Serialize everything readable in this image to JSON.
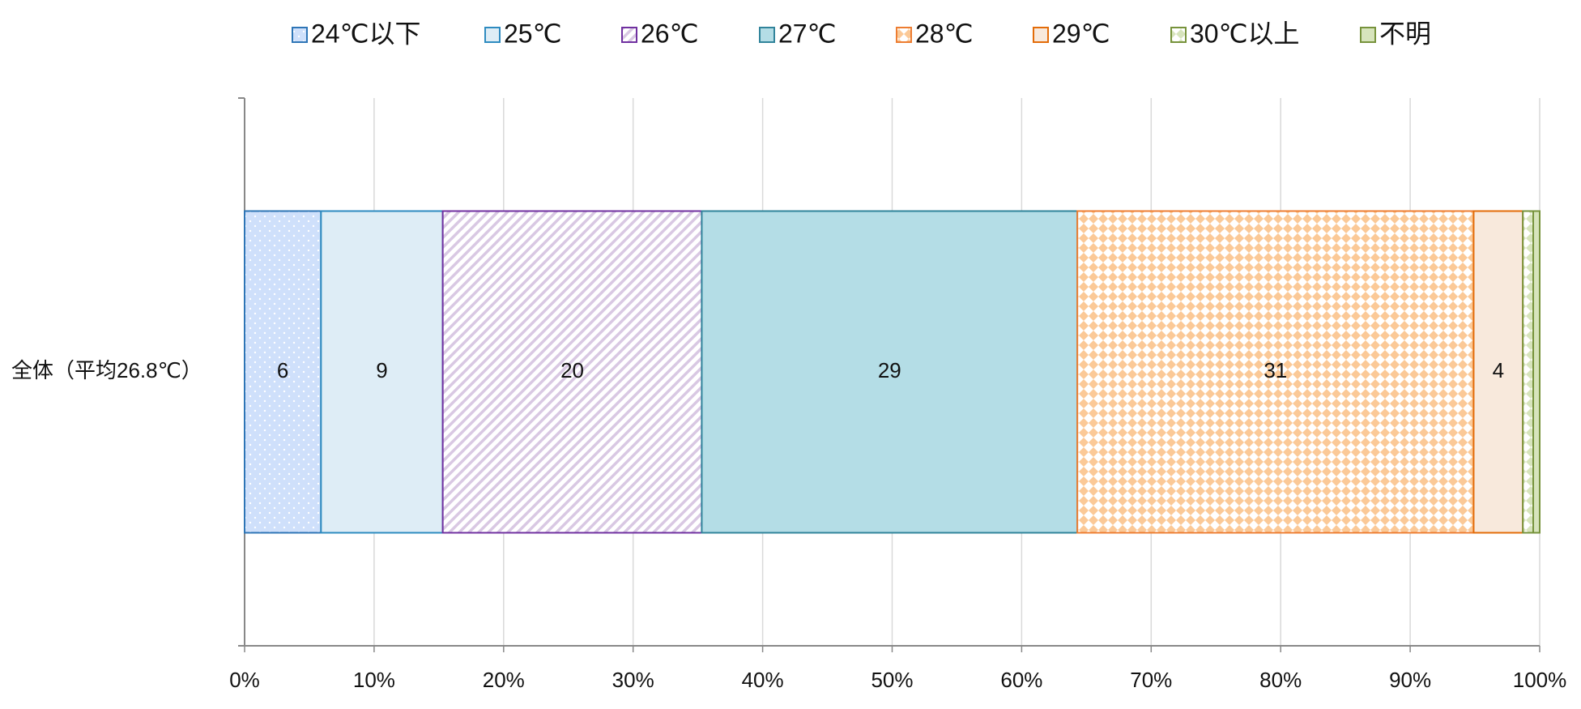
{
  "chart_data": {
    "type": "stacked_barh",
    "categories": [
      "全体（平均26.8℃）"
    ],
    "series": [
      {
        "name": "24℃以下",
        "color": "#cfe0fb",
        "edge": "#2e75b6",
        "pattern": "dots",
        "values": [
          5.9
        ],
        "value_labels": [
          "6"
        ]
      },
      {
        "name": "25℃",
        "color": "#deedf6",
        "edge": "#2e8bc0",
        "pattern": "none",
        "values": [
          9.4
        ],
        "value_labels": [
          "9"
        ]
      },
      {
        "name": "26℃",
        "color": "#d9c8e3",
        "edge": "#7030a0",
        "pattern": "stripes",
        "values": [
          20.0
        ],
        "value_labels": [
          "20"
        ]
      },
      {
        "name": "27℃",
        "color": "#b4dde6",
        "edge": "#31849b",
        "pattern": "none",
        "values": [
          29.0
        ],
        "value_labels": [
          "29"
        ]
      },
      {
        "name": "28℃",
        "color": "#fbc997",
        "edge": "#ed7d31",
        "pattern": "checker",
        "values": [
          30.6
        ],
        "value_labels": [
          "31"
        ]
      },
      {
        "name": "29℃",
        "color": "#f8e9dc",
        "edge": "#e36c09",
        "pattern": "none",
        "values": [
          3.8
        ],
        "value_labels": [
          "4"
        ]
      },
      {
        "name": "30℃以上",
        "color": "#d7e4bc",
        "edge": "#77933c",
        "pattern": "checker",
        "values": [
          0.8
        ],
        "value_labels": [
          null
        ]
      },
      {
        "name": "不明",
        "color": "#d7e4bc",
        "edge": "#77933c",
        "pattern": "none",
        "values": [
          0.5
        ],
        "value_labels": [
          null
        ]
      }
    ],
    "xlim": [
      0,
      100
    ],
    "xticks": [
      {
        "value": 0,
        "label": "0%"
      },
      {
        "value": 10,
        "label": "10%"
      },
      {
        "value": 20,
        "label": "20%"
      },
      {
        "value": 30,
        "label": "30%"
      },
      {
        "value": 40,
        "label": "40%"
      },
      {
        "value": 50,
        "label": "50%"
      },
      {
        "value": 60,
        "label": "60%"
      },
      {
        "value": 70,
        "label": "70%"
      },
      {
        "value": 80,
        "label": "80%"
      },
      {
        "value": 90,
        "label": "90%"
      },
      {
        "value": 100,
        "label": "100%"
      }
    ],
    "grid": true,
    "legend": "top"
  }
}
